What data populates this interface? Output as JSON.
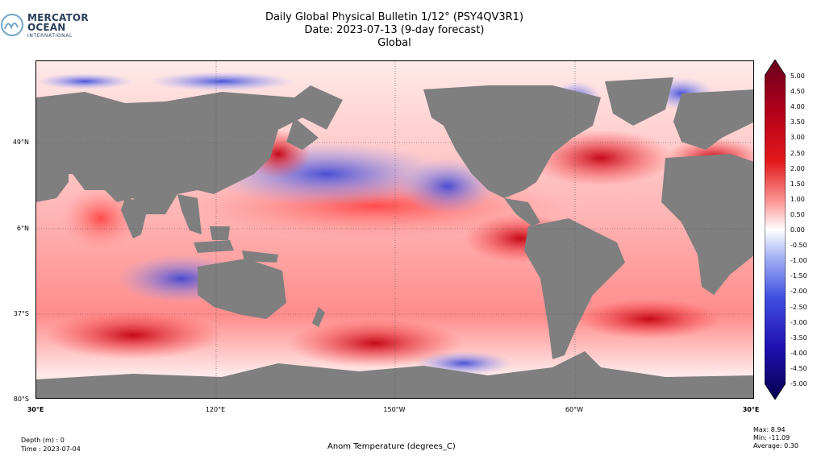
{
  "logo": {
    "line1": "MERCATOR",
    "line2": "OCEAN",
    "line3": "INTERNATIONAL"
  },
  "title": {
    "line1": "Daily Global Physical Bulletin 1/12° (PSY4QV3R1)",
    "line2": "Date: 2023-07-13 (9-day forecast)",
    "line3": "Global"
  },
  "map": {
    "lat_labels": [
      "49°N",
      "6°N",
      "37°S",
      "80°S"
    ],
    "lon_labels": [
      "30°E",
      "120°E",
      "150°W",
      "60°W",
      "30°E"
    ],
    "land_color": "#7f7f7f"
  },
  "colorbar": {
    "ticks": [
      "5.00",
      "4.50",
      "4.00",
      "3.50",
      "3.00",
      "2.50",
      "2.00",
      "1.50",
      "1.00",
      "0.50",
      "0.00",
      "-0.50",
      "-1.00",
      "-1.50",
      "-2.00",
      "-2.50",
      "-3.00",
      "-3.50",
      "-4.00",
      "-4.50",
      "-5.00"
    ],
    "colors": {
      "max": "#67001f",
      "high": "#d6201f",
      "mid": "#ffffff",
      "low": "#2136d6",
      "min": "#08004d"
    }
  },
  "footer": {
    "depth": "Depth (m) : 0",
    "time": "Time : 2023-07-04",
    "variable": "Anom Temperature (degrees_C)",
    "max": "Max:  8.94",
    "min": "Min: -11.09",
    "average": "Average:  0.30"
  }
}
